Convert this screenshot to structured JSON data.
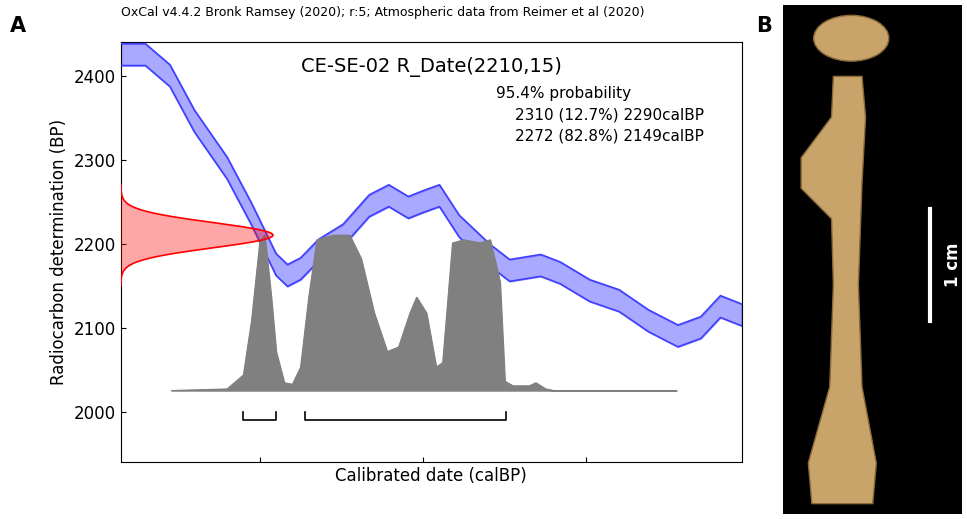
{
  "chart_data": {
    "type": "calibration",
    "panel_label": "A",
    "header": "OxCal v4.4.2 Bronk Ramsey (2020); r:5; Atmospheric data from Reimer et al (2020)",
    "title": "CE-SE-02 R_Date(2210,15)",
    "annotations": [
      "95.4% probability",
      "2310 (12.7%) 2290calBP",
      "2272 (82.8%) 2149calBP"
    ],
    "x_label": "Calibrated date (calBP)",
    "y_label": "Radiocarbon determination (BP)",
    "xlim": [
      2385,
      2005
    ],
    "ylim": [
      1940,
      2440
    ],
    "xticks": [
      2300,
      2200,
      2100
    ],
    "yticks": [
      2000,
      2100,
      2200,
      2300,
      2400
    ],
    "tick_labels": "y",
    "measurement": {
      "mean": 2210,
      "error": 15,
      "color": "#ff0000"
    },
    "curve": {
      "color": "#4040ff",
      "x": [
        2385,
        2370,
        2355,
        2340,
        2320,
        2305,
        2300,
        2290,
        2283,
        2275,
        2264,
        2249,
        2233,
        2221,
        2209,
        2200,
        2190,
        2178,
        2159,
        2147,
        2128,
        2116,
        2098,
        2080,
        2062,
        2044,
        2030,
        2018,
        2005
      ],
      "upper": [
        2438,
        2438,
        2413,
        2359,
        2303,
        2248,
        2228,
        2188,
        2175,
        2183,
        2205,
        2223,
        2258,
        2270,
        2256,
        2263,
        2270,
        2234,
        2199,
        2181,
        2187,
        2178,
        2157,
        2145,
        2121,
        2103,
        2113,
        2138,
        2128
      ],
      "lower": [
        2412,
        2412,
        2387,
        2333,
        2277,
        2222,
        2202,
        2162,
        2149,
        2157,
        2179,
        2197,
        2232,
        2244,
        2230,
        2237,
        2244,
        2208,
        2173,
        2155,
        2161,
        2152,
        2131,
        2119,
        2095,
        2077,
        2087,
        2112,
        2102
      ]
    },
    "density": {
      "color": "#808080",
      "x": [
        2354,
        2320,
        2310,
        2305,
        2300,
        2297,
        2293,
        2290,
        2285,
        2280,
        2275,
        2270,
        2265,
        2255,
        2245,
        2238,
        2230,
        2222,
        2215,
        2208,
        2204,
        2198,
        2192,
        2188,
        2182,
        2175,
        2165,
        2159,
        2153,
        2150,
        2145,
        2135,
        2131,
        2125,
        2120,
        2045
      ],
      "values": [
        0,
        0.01,
        0.1,
        0.45,
        0.95,
        1.0,
        0.6,
        0.25,
        0.05,
        0.04,
        0.15,
        0.6,
        0.97,
        1.0,
        1.0,
        0.85,
        0.5,
        0.25,
        0.28,
        0.5,
        0.6,
        0.5,
        0.15,
        0.18,
        0.95,
        0.97,
        0.95,
        0.97,
        0.7,
        0.06,
        0.03,
        0.03,
        0.05,
        0.01,
        0,
        0
      ]
    },
    "ranges": [
      [
        2310,
        2290
      ],
      [
        2272,
        2149
      ]
    ]
  },
  "image_panel": {
    "panel_label": "B",
    "scale_label": "1 cm"
  }
}
